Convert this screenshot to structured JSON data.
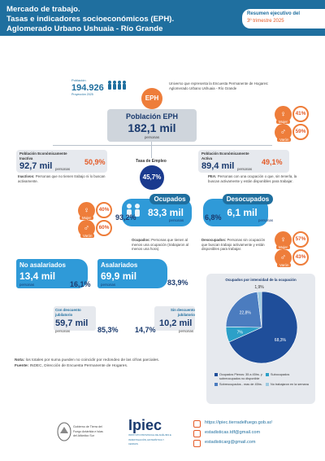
{
  "header": {
    "title_l1": "Mercado de trabajo.",
    "title_l2": "Tasas e indicadores socioeconómicos (EPH).",
    "title_l3": "Aglomerado Urbano Ushuaia - Río Grande",
    "badge_l1": "Resumen ejecutivo del",
    "badge_l2": "3º trimestre 2025"
  },
  "population": {
    "label": "Población",
    "value": "194.926",
    "sub": "Proyección 2025",
    "universe_note": "Universo que representa la Encuesta Permanente de Hogares: Aglomerado Urbano Ushuaia - Río Grande"
  },
  "eph": {
    "badge": "EPH",
    "title": "Población EPH",
    "value": "182,1 mil",
    "unit": "personas"
  },
  "inactive": {
    "title": "Población Económicamente Inactiva",
    "value": "92,7 mil",
    "unit": "personas",
    "pct": "50,9%",
    "note_bold": "Inactivos:",
    "note": " Personas que no tienen trabajo ni lo buscan activamente."
  },
  "active": {
    "title": "Población Económicamente Activa",
    "value": "89,4 mil",
    "unit": "personas",
    "pct": "49,1%",
    "note_bold": "PEA:",
    "note": " Personas con una ocupación o que, sin tenerla, la buscan activamente y están disponibles para trabajar."
  },
  "employment_rate": {
    "label": "Tasa de Empleo",
    "value": "45,7%"
  },
  "gender_eph": {
    "female_pct": "41%",
    "female_label": "Mujer",
    "male_pct": "59%",
    "male_label": "Varón"
  },
  "employed": {
    "title": "Ocupados",
    "value": "83,3 mil",
    "unit": "personas",
    "pct": "93,2%",
    "note_bold": "Ocupados:",
    "note": " Personas que tienen al menos una ocupación (trabajaron al menos una hora).",
    "female_pct": "40%",
    "female_label": "Mujer",
    "male_pct": "60%",
    "male_label": "Varón"
  },
  "unemployed": {
    "title": "Desocupados",
    "value": "6,1 mil",
    "unit": "personas",
    "pct": "6,8%",
    "note_bold": "Desocupados:",
    "note": " Personas sin ocupación que buscan trabajo activamente y están disponibles para trabajar.",
    "female_pct": "57%",
    "female_label": "Mujer",
    "male_pct": "43%",
    "male_label": "Varón"
  },
  "non_salaried": {
    "title": "No asalariados",
    "value": "13,4 mil",
    "unit": "personas",
    "pct": "16,1%"
  },
  "salaried": {
    "title": "Asalariados",
    "value": "69,9 mil",
    "unit": "personas",
    "pct": "83,9%"
  },
  "with_pension": {
    "title": "Con descuento jubilatorio",
    "value": "59,7 mil",
    "unit": "personas",
    "pct": "85,3%"
  },
  "without_pension": {
    "title": "Sin descuento jubilatorio",
    "value": "10,2 mil",
    "unit": "personas",
    "pct": "14,7%"
  },
  "notes": {
    "nota_bold": "Nota:",
    "nota": " los totales por suma pueden no coincidir por redondeo de las cifras parciales.",
    "fuente_bold": "Fuente:",
    "fuente": " INDEC, Dirección de Encuesta Permanente de Hogares."
  },
  "chart_data": {
    "type": "pie",
    "title": "Ocupados por intensidad de la ocupación",
    "slices": [
      {
        "label": "Ocupados Plenos: 35 a 45hs. y sobreocupados no disponible",
        "value": 68.3,
        "color": "#1f4e9a"
      },
      {
        "label": "Subocupados",
        "value": 7.0,
        "color": "#2ca0c8"
      },
      {
        "label": "Sobreocupados - mas de 45hs.",
        "value": 22.8,
        "color": "#4b7cbf"
      },
      {
        "label": "No trabajaron en la semana",
        "value": 1.9,
        "color": "#9ecae1"
      }
    ],
    "data_labels": [
      "68,3%",
      "7%",
      "22,8%",
      "1,9%"
    ],
    "legend_position": "bottom"
  },
  "footer": {
    "gov_text": "Gobierno de Tierra del Fuego Antártida e Islas del Atlántico Sur",
    "ipiec": "Ipiec",
    "ipiec_sub": "INSTITUTO PROVINCIAL DE ANÁLISIS E INVESTIGACIÓN, ESTADÍSTICA Y CENSOS",
    "web": "https://ipiec.tierradelfuego.gob.ar/",
    "mail1": "estadisticas.tdf@gmail.com",
    "mail2": "estadisticarg@gmail.com"
  },
  "colors": {
    "primary": "#1f6f9f",
    "accent": "#e45a26",
    "dark": "#1a3a6e"
  }
}
